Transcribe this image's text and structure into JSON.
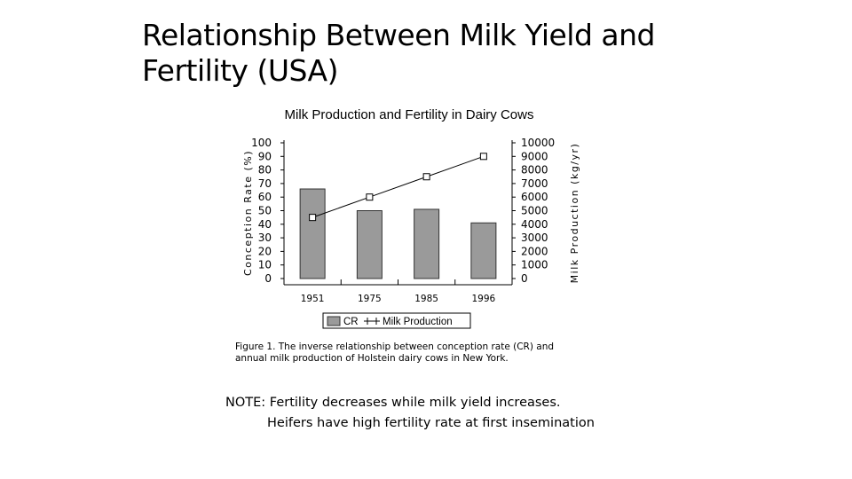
{
  "slide": {
    "title_line1": "Relationship Between Milk Yield and",
    "title_line2": "Fertility (USA)",
    "caption_line1": "Figure 1. The inverse relationship between conception rate (CR) and",
    "caption_line2": "annual milk production of Holstein dairy cows in New York.",
    "note_line1": "NOTE: Fertility decreases while milk yield increases.",
    "note_line2": "Heifers have high fertility rate at first insemination"
  },
  "chart_data": {
    "type": "bar",
    "title": "Milk Production and Fertility in Dairy Cows",
    "categories": [
      "1951",
      "1975",
      "1985",
      "1996"
    ],
    "ylabel_left": "Conception Rate (%)",
    "ylabel_right": "Milk Production (kg/yr)",
    "ylim_left": [
      0,
      100
    ],
    "ylim_right": [
      0,
      10000
    ],
    "yticks_left": [
      0,
      10,
      20,
      30,
      40,
      50,
      60,
      70,
      80,
      90,
      100
    ],
    "yticks_right": [
      0,
      1000,
      2000,
      3000,
      4000,
      5000,
      6000,
      7000,
      8000,
      9000,
      10000
    ],
    "grid": false,
    "legend_position": "bottom",
    "series": [
      {
        "name": "CR",
        "kind": "bar",
        "axis": "left",
        "values": [
          66,
          50,
          51,
          41
        ],
        "color": "#9a9a9a"
      },
      {
        "name": "Milk Production",
        "kind": "line",
        "axis": "right",
        "values": [
          4500,
          6000,
          7500,
          9000
        ],
        "color": "#000000"
      }
    ]
  }
}
